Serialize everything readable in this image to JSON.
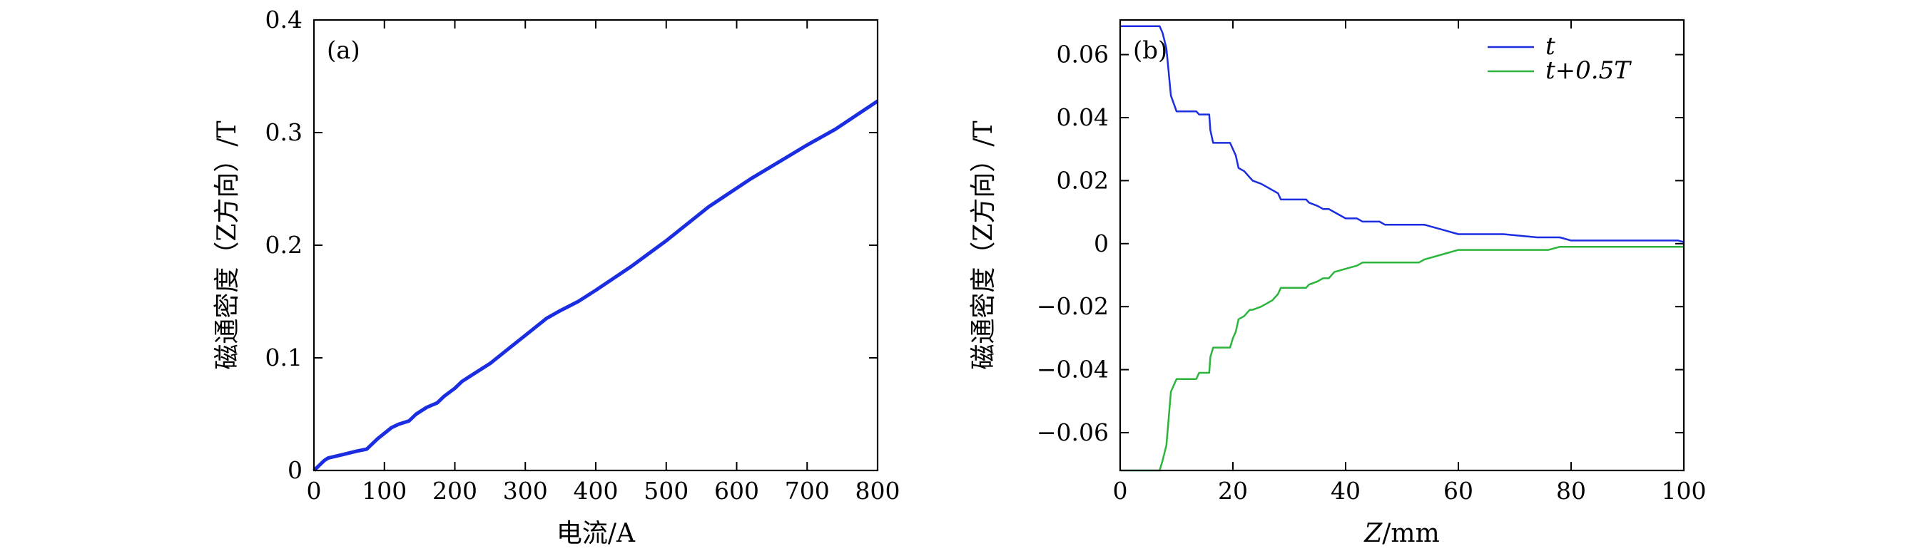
{
  "chart_data": [
    {
      "type": "line",
      "panel_label": "(a)",
      "xlabel": "电流/A",
      "ylabel": "磁通密度（Z方向）/T",
      "xlim": [
        0,
        800
      ],
      "ylim": [
        0,
        0.4
      ],
      "xticks": [
        "0",
        "100",
        "200",
        "300",
        "400",
        "500",
        "600",
        "700",
        "800"
      ],
      "yticks": [
        "0",
        "0.1",
        "0.2",
        "0.3",
        "0.4"
      ],
      "colors": {
        "line": "#1a2de0"
      },
      "series": [
        {
          "x": [
            0,
            5,
            10,
            15,
            20,
            40,
            60,
            75,
            90,
            110,
            120,
            135,
            145,
            160,
            175,
            185,
            200,
            210,
            230,
            250,
            280,
            300,
            330,
            350,
            375,
            400,
            450,
            500,
            560,
            620,
            660,
            700,
            740,
            800
          ],
          "y": [
            0,
            0.003,
            0.006,
            0.009,
            0.011,
            0.014,
            0.017,
            0.019,
            0.028,
            0.038,
            0.041,
            0.044,
            0.05,
            0.056,
            0.06,
            0.066,
            0.073,
            0.079,
            0.087,
            0.095,
            0.11,
            0.12,
            0.135,
            0.142,
            0.15,
            0.16,
            0.181,
            0.204,
            0.234,
            0.259,
            0.274,
            0.289,
            0.303,
            0.328
          ]
        }
      ]
    },
    {
      "type": "line",
      "panel_label": "(b)",
      "xlabel_var": "Z",
      "xlabel_unit": "/mm",
      "ylabel": "磁通密度（Z方向）/T",
      "xlim": [
        0,
        100
      ],
      "ylim": [
        -0.072,
        0.071
      ],
      "xticks": [
        "0",
        "20",
        "40",
        "60",
        "80",
        "100"
      ],
      "yticks": [
        "0.06",
        "0.04",
        "0.02",
        "0",
        "−0.02",
        "−0.04",
        "−0.06"
      ],
      "legend_position": "top-right",
      "series": [
        {
          "name": "t",
          "color": "#1a2de0",
          "x": [
            0,
            7,
            7.5,
            8.2,
            9,
            10,
            11,
            12,
            13.5,
            14,
            15,
            15.8,
            16,
            16.5,
            17,
            18,
            19.5,
            20,
            20.5,
            21,
            22,
            23,
            23.5,
            25,
            26,
            27,
            28,
            28.5,
            29,
            33,
            33.5,
            35,
            36,
            37,
            38,
            40,
            42,
            43,
            46,
            47,
            53,
            54,
            56,
            58,
            60,
            62,
            68,
            74,
            76,
            78,
            80,
            90,
            99,
            100
          ],
          "y": [
            0.069,
            0.069,
            0.067,
            0.062,
            0.047,
            0.042,
            0.042,
            0.042,
            0.042,
            0.041,
            0.041,
            0.041,
            0.036,
            0.032,
            0.032,
            0.032,
            0.032,
            0.03,
            0.028,
            0.024,
            0.023,
            0.021,
            0.02,
            0.019,
            0.018,
            0.017,
            0.016,
            0.014,
            0.014,
            0.014,
            0.013,
            0.012,
            0.011,
            0.011,
            0.01,
            0.008,
            0.008,
            0.007,
            0.007,
            0.006,
            0.006,
            0.006,
            0.005,
            0.004,
            0.003,
            0.003,
            0.003,
            0.002,
            0.002,
            0.002,
            0.001,
            0.001,
            0.001,
            0.0005
          ]
        },
        {
          "name": "t+0.5T",
          "color": "#2cb53c",
          "x": [
            0,
            7,
            7.5,
            8.2,
            9,
            10,
            11,
            12,
            13.5,
            14,
            15,
            15.8,
            16,
            16.5,
            17,
            18,
            19.5,
            20,
            20.5,
            21,
            22,
            23,
            23.5,
            25,
            26,
            27,
            28,
            28.5,
            29,
            33,
            33.5,
            35,
            36,
            37,
            38,
            40,
            42,
            43,
            46,
            47,
            53,
            54,
            56,
            58,
            60,
            62,
            68,
            74,
            76,
            78,
            80,
            90,
            99,
            100
          ],
          "y": [
            -0.072,
            -0.072,
            -0.069,
            -0.064,
            -0.047,
            -0.043,
            -0.043,
            -0.043,
            -0.043,
            -0.041,
            -0.041,
            -0.041,
            -0.036,
            -0.033,
            -0.033,
            -0.033,
            -0.033,
            -0.03,
            -0.028,
            -0.024,
            -0.023,
            -0.021,
            -0.021,
            -0.02,
            -0.019,
            -0.018,
            -0.016,
            -0.014,
            -0.014,
            -0.014,
            -0.013,
            -0.012,
            -0.011,
            -0.011,
            -0.009,
            -0.008,
            -0.007,
            -0.006,
            -0.006,
            -0.006,
            -0.006,
            -0.005,
            -0.004,
            -0.003,
            -0.002,
            -0.002,
            -0.002,
            -0.002,
            -0.002,
            -0.001,
            -0.001,
            -0.001,
            -0.001,
            -0.001
          ]
        }
      ]
    }
  ]
}
